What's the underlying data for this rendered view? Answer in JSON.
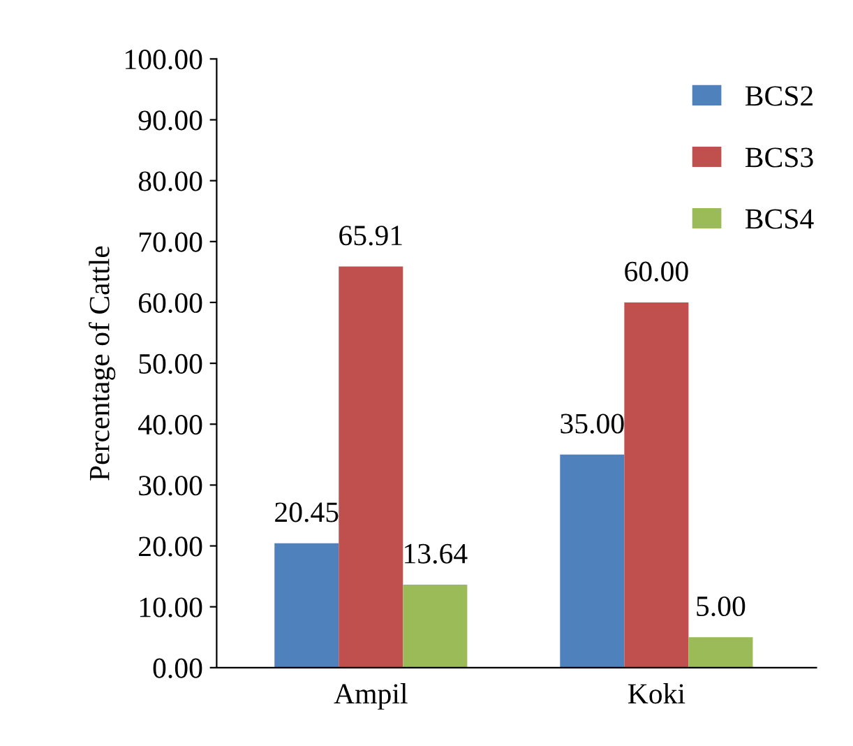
{
  "chart_data": {
    "type": "bar",
    "ylabel": "Percentage of Cattle",
    "categories": [
      "Ampil",
      "Koki"
    ],
    "series": [
      {
        "name": "BCS2",
        "color": "#4f81bd",
        "values": [
          20.45,
          35.0
        ],
        "value_labels": [
          "20.45",
          "35.00"
        ]
      },
      {
        "name": "BCS3",
        "color": "#c0504d",
        "values": [
          65.91,
          60.0
        ],
        "value_labels": [
          "65.91",
          "60.00"
        ]
      },
      {
        "name": "BCS4",
        "color": "#9bbb59",
        "values": [
          13.64,
          5.0
        ],
        "value_labels": [
          "13.64",
          "5.00"
        ]
      }
    ],
    "ylim": [
      0,
      100
    ],
    "yticks": [
      {
        "value": 0,
        "label": "0.00"
      },
      {
        "value": 10,
        "label": "10.00"
      },
      {
        "value": 20,
        "label": "20.00"
      },
      {
        "value": 30,
        "label": "30.00"
      },
      {
        "value": 40,
        "label": "40.00"
      },
      {
        "value": 50,
        "label": "50.00"
      },
      {
        "value": 60,
        "label": "60.00"
      },
      {
        "value": 70,
        "label": "70.00"
      },
      {
        "value": 80,
        "label": "80.00"
      },
      {
        "value": 90,
        "label": "90.00"
      },
      {
        "value": 100,
        "label": "100.00"
      }
    ],
    "grid": false,
    "legend": "top right"
  }
}
